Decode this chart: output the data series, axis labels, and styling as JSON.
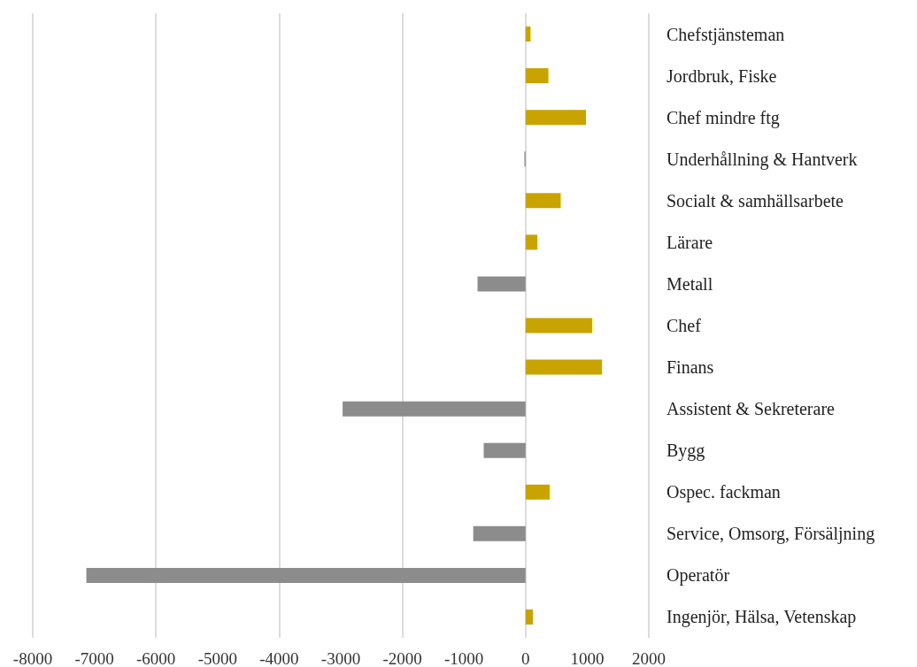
{
  "chart_data": {
    "type": "bar",
    "orientation": "horizontal",
    "categories": [
      "Chefstjänsteman",
      "Jordbruk, Fiske",
      "Chef mindre ftg",
      "Underhållning & Hantverk",
      "Socialt & samhällsarbete",
      "Lärare",
      "Metall",
      "Chef",
      "Finans",
      "Assistent & Sekreterare",
      "Bygg",
      "Ospec. fackman",
      "Service, Omsorg, Försäljning",
      "Operatör",
      "Ingenjör, Hälsa, Vetenskap"
    ],
    "values": [
      80,
      370,
      980,
      -20,
      570,
      190,
      -780,
      1080,
      1240,
      -2970,
      -680,
      390,
      -850,
      -7130,
      120
    ],
    "colors": [
      "#c9a400",
      "#c9a400",
      "#c9a400",
      "#8c8c8c",
      "#c9a400",
      "#c9a400",
      "#8c8c8c",
      "#c9a400",
      "#c9a400",
      "#8c8c8c",
      "#8c8c8c",
      "#c9a400",
      "#8c8c8c",
      "#8c8c8c",
      "#c9a400"
    ],
    "xlim": [
      -8000,
      2000
    ],
    "xticks": [
      -8000,
      -7000,
      -6000,
      -5000,
      -4000,
      -3000,
      -2000,
      -1000,
      0,
      1000,
      2000
    ],
    "grid": "x"
  }
}
